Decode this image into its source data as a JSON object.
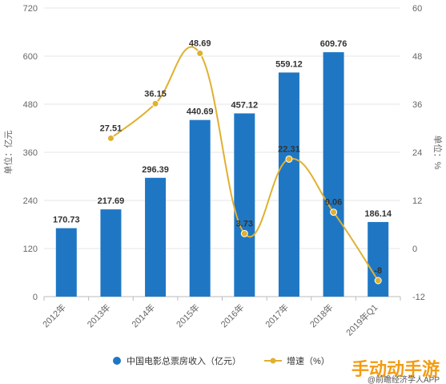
{
  "chart_data": {
    "type": "bar",
    "categories": [
      "2012年",
      "2013年",
      "2014年",
      "2015年",
      "2016年",
      "2017年",
      "2018年",
      "2019年Q1"
    ],
    "series": [
      {
        "name": "中国电影总票房收入（亿元）",
        "type": "bar",
        "axis": "left",
        "color": "#1f77c4",
        "values": [
          170.73,
          217.69,
          296.39,
          440.69,
          457.12,
          559.12,
          609.76,
          186.14
        ],
        "labels": [
          "170.73",
          "217.69",
          "296.39",
          "440.69",
          "457.12",
          "559.12",
          "609.76",
          "186.14"
        ]
      },
      {
        "name": "增速（%）",
        "type": "line",
        "axis": "right",
        "color": "#e0b030",
        "values": [
          null,
          27.51,
          36.15,
          48.69,
          3.73,
          22.31,
          9.06,
          -8
        ],
        "labels": [
          "",
          "27.51",
          "36.15",
          "48.69",
          "3.73",
          "22.31",
          "9.06",
          "-8"
        ]
      }
    ],
    "y_left": {
      "label": "单位：亿元",
      "min": 0,
      "max": 720,
      "ticks": [
        "0",
        "120",
        "240",
        "360",
        "480",
        "600",
        "720"
      ]
    },
    "y_right": {
      "label": "单位：%",
      "min": -12,
      "max": 60,
      "ticks": [
        "-12",
        "0",
        "12",
        "24",
        "36",
        "48",
        "60"
      ]
    },
    "grid": true,
    "legend_position": "bottom-center"
  },
  "watermark": {
    "text": "手动动手游"
  },
  "source": {
    "text": "@前瞻经济学人APP"
  }
}
